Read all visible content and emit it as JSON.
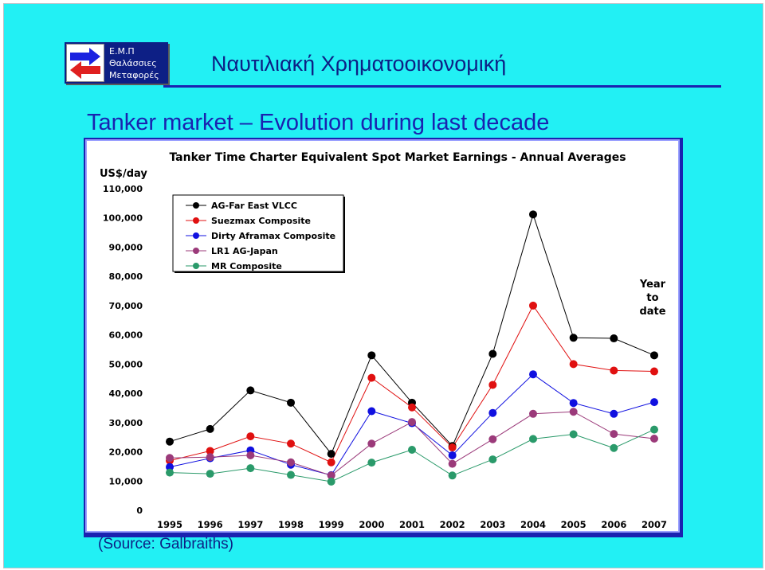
{
  "slide": {
    "logo": {
      "lines": [
        "Ε.Μ.Π",
        "Θαλάσσιες",
        "Μεταφορές"
      ],
      "icon": "left-right-arrows-icon",
      "colors": {
        "panel": "#0d1f85",
        "arrow_top": "#1a22e0",
        "arrow_bottom": "#e02020"
      }
    },
    "header_title": "Ναυτιλιακή Χρηματοοικονομική",
    "title": "Tanker market – Evolution during last decade",
    "source": "(Source: Galbraiths)",
    "colors": {
      "background": "#22f0f4",
      "title": "#1a22b0",
      "frame": "#1a22b0"
    }
  },
  "chart_data": {
    "type": "line",
    "title": "Tanker Time Charter Equivalent Spot Market Earnings - Annual Averages",
    "ylabel": "US$/day",
    "xlabel": "",
    "x": [
      "1995",
      "1996",
      "1997",
      "1998",
      "1999",
      "2000",
      "2001",
      "2002",
      "2003",
      "2004",
      "2005",
      "2006",
      "2007"
    ],
    "ylim": [
      0,
      110000
    ],
    "yticks": [
      0,
      10000,
      20000,
      30000,
      40000,
      50000,
      60000,
      70000,
      80000,
      90000,
      100000,
      110000
    ],
    "ytick_labels": [
      "0",
      "10,000",
      "20,000",
      "30,000",
      "40,000",
      "50,000",
      "60,000",
      "70,000",
      "80,000",
      "90,000",
      "100,000",
      "110,000"
    ],
    "grid": false,
    "legend_position": "top-left",
    "annotation": [
      "Year",
      "to",
      "date"
    ],
    "series": [
      {
        "name": "AG-Far East VLCC",
        "color": "#000000",
        "values": [
          23500,
          27800,
          41000,
          36800,
          19300,
          53000,
          36800,
          22000,
          53500,
          101200,
          59000,
          58800,
          53000
        ]
      },
      {
        "name": "Suezmax Composite",
        "color": "#e01010",
        "values": [
          17000,
          20300,
          25300,
          22800,
          16400,
          45300,
          35200,
          21500,
          42900,
          70000,
          50000,
          47800,
          47500
        ]
      },
      {
        "name": "Dirty Aframax Composite",
        "color": "#1010e0",
        "values": [
          14800,
          17800,
          20500,
          15600,
          12000,
          33900,
          29800,
          18800,
          33300,
          46500,
          36700,
          33000,
          37000
        ]
      },
      {
        "name": "LR1 AG-Japan",
        "color": "#9b3a7a",
        "values": [
          17900,
          18200,
          18800,
          16400,
          11900,
          22800,
          30200,
          15900,
          24300,
          33000,
          33700,
          26100,
          24500
        ]
      },
      {
        "name": "MR Composite",
        "color": "#2a9a6a",
        "values": [
          12900,
          12500,
          14400,
          12100,
          9800,
          16300,
          20700,
          11900,
          17400,
          24400,
          26000,
          21300,
          27600
        ]
      }
    ]
  }
}
